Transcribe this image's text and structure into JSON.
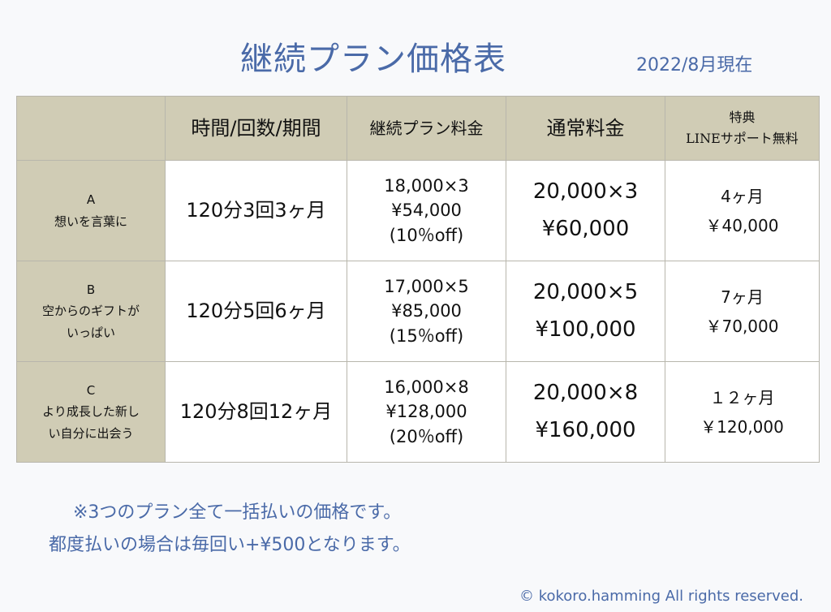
{
  "title": "継続プラン価格表",
  "date": "2022/8月現在",
  "table": {
    "headers": {
      "col1": "",
      "col2": "時間/回数/期間",
      "col3": "継続プラン料金",
      "col4": "通常料金",
      "col5_line1": "特典",
      "col5_line2": "LINEサポート無料"
    },
    "rows": [
      {
        "plan_letter": "A",
        "plan_name_lines": [
          "想いを言葉に"
        ],
        "period": "120分3回3ヶ月",
        "cont_lines": [
          "18,000×3",
          "¥54,000",
          "(10％off)"
        ],
        "normal_lines": [
          "20,000×3",
          "¥60,000"
        ],
        "bonus_lines": [
          "4ヶ月",
          "￥40,000"
        ]
      },
      {
        "plan_letter": "B",
        "plan_name_lines": [
          "空からのギフトが",
          "いっぱい"
        ],
        "period": "120分5回6ヶ月",
        "cont_lines": [
          "17,000×5",
          "¥85,000",
          "(15％off)"
        ],
        "normal_lines": [
          "20,000×5",
          "¥100,000"
        ],
        "bonus_lines": [
          "7ヶ月",
          "￥70,000"
        ]
      },
      {
        "plan_letter": "C",
        "plan_name_lines": [
          "より成長した新し",
          "い自分に出会う"
        ],
        "period": "120分8回12ヶ月",
        "cont_lines": [
          "16,000×8",
          "¥128,000",
          "(20％off)"
        ],
        "normal_lines": [
          "20,000×8",
          "¥160,000"
        ],
        "bonus_lines": [
          "１２ヶ月",
          "￥120,000"
        ]
      }
    ]
  },
  "notes": {
    "line1": "※3つのプラン全て一括払いの価格です。",
    "line2": "都度払いの場合は毎回い+¥500となります。"
  },
  "copyright": "© kokoro.hamming All rights reserved."
}
